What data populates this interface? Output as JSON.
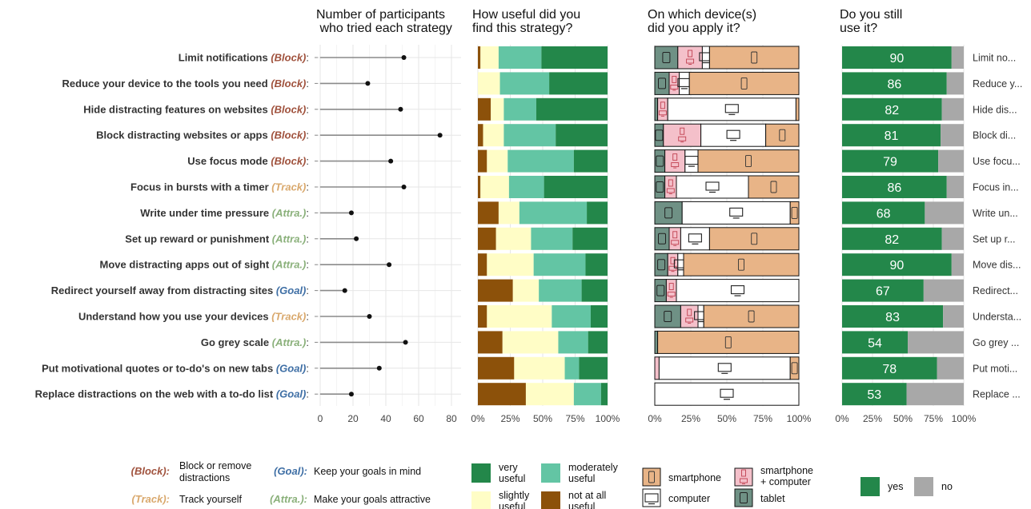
{
  "colors": {
    "block": "#a0523d",
    "track": "#d9a86c",
    "attra": "#8ab07a",
    "goal": "#3f6fa5",
    "very_useful": "#23874a",
    "moderately_useful": "#63c5a4",
    "slightly_useful": "#fffdc6",
    "not_at_all_useful": "#8c510a",
    "smartphone": "#e8b487",
    "smartphone_computer": "#f4c0ca",
    "computer": "#ffffff",
    "tablet": "#6f9185",
    "yes": "#23874a",
    "no": "#a8a8a8",
    "grid": "#e6e6e6"
  },
  "panel_titles": [
    [
      "Number of participants",
      " who tried each strategy"
    ],
    [
      "How useful did you",
      "find this strategy?"
    ],
    [
      "On which device(s)",
      "did you apply it?"
    ],
    [
      "Do you still",
      "use it?"
    ]
  ],
  "strategies": [
    {
      "name": "Limit notifications",
      "tag": "(Block)",
      "cat": "block",
      "short": "Limit no..."
    },
    {
      "name": "Reduce your device to the tools you need",
      "tag": "(Block)",
      "cat": "block",
      "short": "Reduce y..."
    },
    {
      "name": "Hide distracting features on websites",
      "tag": "(Block)",
      "cat": "block",
      "short": "Hide dis..."
    },
    {
      "name": "Block distracting websites or apps",
      "tag": "(Block)",
      "cat": "block",
      "short": "Block di..."
    },
    {
      "name": "Use focus mode",
      "tag": "(Block)",
      "cat": "block",
      "short": "Use focu..."
    },
    {
      "name": "Focus in bursts with a timer",
      "tag": "(Track)",
      "cat": "track",
      "short": "Focus in..."
    },
    {
      "name": "Write under time pressure",
      "tag": "(Attra.)",
      "cat": "attra",
      "short": "Write un..."
    },
    {
      "name": "Set up reward or punishment",
      "tag": "(Attra.)",
      "cat": "attra",
      "short": "Set up r..."
    },
    {
      "name": "Move distracting apps out of sight",
      "tag": "(Attra.)",
      "cat": "attra",
      "short": "Move dis..."
    },
    {
      "name": "Redirect yourself away from distracting sites",
      "tag": "(Goal)",
      "cat": "goal",
      "short": "Redirect..."
    },
    {
      "name": "Understand how you use your devices",
      "tag": "(Track)",
      "cat": "track",
      "short": "Understa..."
    },
    {
      "name": "Go grey scale",
      "tag": "(Attra.)",
      "cat": "attra",
      "short": "Go grey ..."
    },
    {
      "name": "Put motivational quotes or to-do's on new tabs",
      "tag": "(Goal)",
      "cat": "goal",
      "short": "Put moti..."
    },
    {
      "name": "Replace distractions on the web with a to-do list",
      "tag": "(Goal)",
      "cat": "goal",
      "short": "Replace ..."
    }
  ],
  "chart_data": [
    {
      "type": "lollipop",
      "title": "Number of participants who tried each strategy",
      "xticks": [
        0,
        20,
        40,
        60,
        80
      ],
      "xlim": [
        0,
        85
      ],
      "values": [
        51,
        29,
        49,
        73,
        43,
        51,
        19,
        22,
        42,
        15,
        30,
        52,
        36,
        19
      ]
    },
    {
      "type": "bar",
      "stacked": true,
      "title": "How useful did you find this strategy?",
      "xticks": [
        "0%",
        "25%",
        "50%",
        "75%",
        "100%"
      ],
      "series_order": [
        "not_at_all",
        "slightly",
        "moderately",
        "very"
      ],
      "values": [
        [
          2,
          14,
          33,
          51
        ],
        [
          0,
          17,
          38,
          45
        ],
        [
          10,
          10,
          25,
          55
        ],
        [
          4,
          16,
          40,
          40
        ],
        [
          7,
          16,
          51,
          26
        ],
        [
          2,
          22,
          27,
          49
        ],
        [
          16,
          16,
          52,
          16
        ],
        [
          14,
          27,
          32,
          27
        ],
        [
          7,
          36,
          40,
          17
        ],
        [
          27,
          20,
          33,
          20
        ],
        [
          7,
          50,
          30,
          13
        ],
        [
          19,
          43,
          23,
          15
        ],
        [
          28,
          39,
          11,
          22
        ],
        [
          37,
          37,
          21,
          5
        ]
      ]
    },
    {
      "type": "bar",
      "stacked": true,
      "title": "On which device(s) did you apply it?",
      "xticks": [
        "0%",
        "25%",
        "50%",
        "75%",
        "100%"
      ],
      "series_order": [
        "tablet",
        "smartphone_computer",
        "computer",
        "smartphone"
      ],
      "values": [
        [
          16,
          17,
          5,
          62
        ],
        [
          10,
          7,
          7,
          76
        ],
        [
          2,
          7,
          89,
          2
        ],
        [
          6,
          26,
          45,
          23
        ],
        [
          7,
          14,
          9,
          70
        ],
        [
          7,
          8,
          50,
          35
        ],
        [
          19,
          0,
          75,
          6
        ],
        [
          10,
          8,
          20,
          62
        ],
        [
          9,
          7,
          4,
          80
        ],
        [
          8,
          7,
          85,
          0
        ],
        [
          18,
          12,
          4,
          66
        ],
        [
          2,
          0,
          0,
          98
        ],
        [
          0,
          3,
          91,
          6
        ],
        [
          0,
          0,
          100,
          0
        ]
      ]
    },
    {
      "type": "bar",
      "stacked": true,
      "title": "Do you still use it?",
      "xticks": [
        "0%",
        "25%",
        "50%",
        "75%",
        "100%"
      ],
      "series_order": [
        "yes",
        "no"
      ],
      "yes_values": [
        90,
        86,
        82,
        81,
        79,
        86,
        68,
        82,
        90,
        67,
        83,
        54,
        78,
        53
      ]
    }
  ],
  "legend": {
    "strategies": [
      {
        "tag": "(Block):",
        "cat": "block",
        "text": [
          "Block or remove",
          "distractions"
        ]
      },
      {
        "tag": "(Goal):",
        "cat": "goal",
        "text": [
          "Keep your goals in mind"
        ]
      },
      {
        "tag": "(Track):",
        "cat": "track",
        "text": [
          "Track yourself"
        ]
      },
      {
        "tag": "(Attra.):",
        "cat": "attra",
        "text": [
          "Make your goals attractive"
        ]
      }
    ],
    "usefulness": [
      {
        "key": "very_useful",
        "text": [
          "very",
          "useful"
        ]
      },
      {
        "key": "moderately_useful",
        "text": [
          "moderately",
          "useful"
        ]
      },
      {
        "key": "slightly_useful",
        "text": [
          "slightly",
          "useful"
        ]
      },
      {
        "key": "not_at_all_useful",
        "text": [
          "not at all",
          "useful"
        ]
      }
    ],
    "devices": [
      {
        "key": "smartphone",
        "text": [
          "smartphone"
        ]
      },
      {
        "key": "smartphone_computer",
        "text": [
          "smartphone",
          "+ computer"
        ]
      },
      {
        "key": "computer",
        "text": [
          "computer"
        ]
      },
      {
        "key": "tablet",
        "text": [
          "tablet"
        ]
      }
    ],
    "still_use": [
      {
        "key": "yes",
        "text": "yes"
      },
      {
        "key": "no",
        "text": "no"
      }
    ]
  }
}
